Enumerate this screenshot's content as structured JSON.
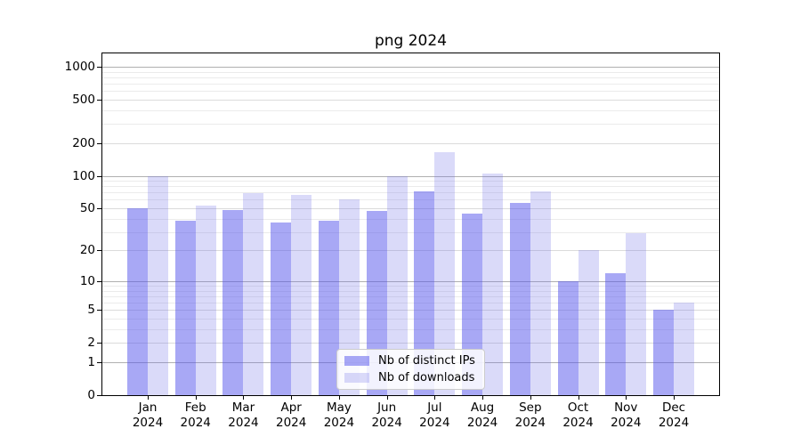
{
  "chart_data": {
    "type": "bar",
    "title": "png 2024",
    "year": "2024",
    "categories": [
      "Jan",
      "Feb",
      "Mar",
      "Apr",
      "May",
      "Jun",
      "Jul",
      "Aug",
      "Sep",
      "Oct",
      "Nov",
      "Dec"
    ],
    "series": [
      {
        "name": "Nb of distinct IPs",
        "color": "#5151eb",
        "alpha": 0.5,
        "values": [
          50,
          38,
          48,
          37,
          38,
          47,
          72,
          45,
          56,
          10,
          12,
          5
        ]
      },
      {
        "name": "Nb of downloads",
        "color": "#6b6be7",
        "alpha": 0.25,
        "values": [
          100,
          53,
          69,
          66,
          61,
          100,
          165,
          105,
          72,
          20,
          29,
          6
        ]
      }
    ],
    "y_axis": {
      "scale": "log(value+1)",
      "ticks": [
        0,
        1,
        2,
        5,
        10,
        20,
        50,
        100,
        200,
        500,
        1000
      ],
      "decade_grid": [
        1,
        10,
        100,
        1000
      ],
      "labeled_grid": [
        2,
        5,
        20,
        50,
        200,
        500
      ],
      "minor_grid": [
        3,
        4,
        6,
        7,
        8,
        9,
        30,
        40,
        60,
        70,
        80,
        90,
        300,
        400,
        600,
        700,
        800,
        900
      ]
    },
    "legend_position": "lower center",
    "grid": true
  },
  "colors": {
    "decade_grid": "#b0b0b0",
    "labeled_grid": "#dbdbdb",
    "minor_grid": "#ebebeb",
    "spine": "#000000",
    "background": "#ffffff"
  }
}
